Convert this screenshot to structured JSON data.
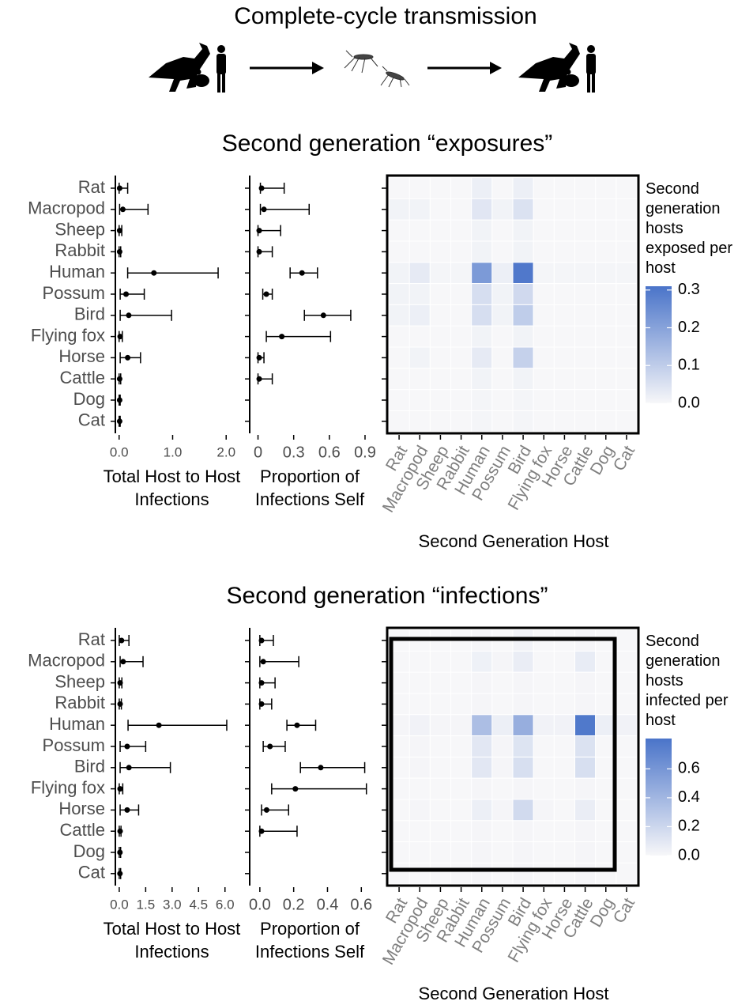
{
  "title": "Complete-cycle transmission",
  "chart_data": [
    {
      "type": "pointrange",
      "title": "Second generation “exposures”",
      "categories": [
        "Rat",
        "Macropod",
        "Sheep",
        "Rabbit",
        "Human",
        "Possum",
        "Bird",
        "Flying fox",
        "Horse",
        "Cattle",
        "Dog",
        "Cat"
      ],
      "values": [
        0.01,
        0.07,
        0.01,
        0.01,
        0.65,
        0.13,
        0.18,
        0.02,
        0.16,
        0.01,
        0.01,
        0.01
      ],
      "lower": [
        0,
        0.01,
        0,
        0,
        0.16,
        0.02,
        0.02,
        0,
        0.02,
        0,
        0,
        0
      ],
      "upper": [
        0.16,
        0.54,
        0.05,
        0.03,
        1.85,
        0.47,
        0.98,
        0.06,
        0.4,
        0.03,
        0.02,
        0.02
      ],
      "xlim": [
        -0.07,
        2.1
      ],
      "xticks": [
        {
          "value": 0,
          "label": "0.0"
        },
        {
          "value": 1,
          "label": "1.0"
        },
        {
          "value": 2,
          "label": "2.0"
        }
      ],
      "xlabel": "Total Host to Host Infections",
      "color": "#000000"
    },
    {
      "type": "pointrange",
      "values": [
        0.03,
        0.05,
        0.01,
        0.01,
        0.37,
        0.07,
        0.55,
        0.2,
        0.01,
        0.01,
        null,
        null
      ],
      "lower": [
        0.02,
        0.02,
        0,
        0,
        0.27,
        0.04,
        0.39,
        0.07,
        0,
        0,
        null,
        null
      ],
      "upper": [
        0.22,
        0.43,
        0.19,
        0.12,
        0.5,
        0.12,
        0.78,
        0.61,
        0.05,
        0.12,
        null,
        null
      ],
      "xlim": [
        -0.07,
        0.94
      ],
      "xticks": [
        0,
        0.3,
        0.6,
        0.9
      ],
      "xlabel": "Proportion of Infections Self",
      "color": "#000000"
    },
    {
      "type": "heatmap",
      "x": [
        "Rat",
        "Macropod",
        "Sheep",
        "Rabbit",
        "Human",
        "Possum",
        "Bird",
        "Flying fox",
        "Horse",
        "Cattle",
        "Dog",
        "Cat"
      ],
      "z": [
        [
          0,
          0,
          0,
          0,
          0.02,
          0,
          0.02,
          0,
          0,
          0,
          0,
          0
        ],
        [
          0.01,
          0.01,
          0,
          0,
          0.04,
          0.01,
          0.05,
          0,
          0,
          0,
          0,
          0
        ],
        [
          0,
          0,
          0,
          0,
          0.01,
          0,
          0.01,
          0,
          0,
          0,
          0,
          0
        ],
        [
          0,
          0,
          0,
          0,
          0.01,
          0,
          0.01,
          0,
          0,
          0,
          0,
          0
        ],
        [
          0.01,
          0.03,
          0.005,
          0.005,
          0.22,
          0.02,
          0.3,
          0.005,
          0.005,
          0.005,
          0.005,
          0.005
        ],
        [
          0.01,
          0.01,
          0,
          0,
          0.06,
          0.01,
          0.07,
          0,
          0,
          0,
          0,
          0
        ],
        [
          0.01,
          0.02,
          0,
          0,
          0.06,
          0.01,
          0.1,
          0,
          0,
          0,
          0,
          0
        ],
        [
          0,
          0,
          0,
          0,
          0.01,
          0,
          0.01,
          0,
          0,
          0,
          0,
          0
        ],
        [
          0,
          0.01,
          0,
          0,
          0.03,
          0,
          0.09,
          0,
          0,
          0,
          0,
          0
        ],
        [
          0,
          0,
          0,
          0,
          0.01,
          0,
          0.01,
          0,
          0,
          0,
          0,
          0
        ],
        [
          0,
          0,
          0,
          0,
          0.005,
          0,
          0.005,
          0,
          0,
          0,
          0,
          0
        ],
        [
          0,
          0,
          0,
          0,
          0.005,
          0,
          0.005,
          0,
          0,
          0,
          0,
          0
        ]
      ],
      "xlabel": "Second Generation Host",
      "legend_title": "Second generation hosts exposed per host",
      "zlim": [
        0,
        0.31
      ],
      "zticks": [
        {
          "value": 0,
          "label": "0.0"
        },
        0.1,
        0.2,
        0.3
      ],
      "colors": [
        "#f7f7f9",
        "#4a74c9"
      ]
    },
    {
      "type": "pointrange",
      "title": "Second generation “infections”",
      "categories": [
        "Rat",
        "Macropod",
        "Sheep",
        "Rabbit",
        "Human",
        "Possum",
        "Bird",
        "Flying fox",
        "Horse",
        "Cattle",
        "Dog",
        "Cat"
      ],
      "values": [
        0.13,
        0.22,
        0.05,
        0.05,
        2.25,
        0.45,
        0.55,
        0.05,
        0.45,
        0.05,
        0.04,
        0.04
      ],
      "lower": [
        0,
        0.05,
        0,
        0,
        0.5,
        0.05,
        0.05,
        0,
        0.05,
        0,
        0,
        0
      ],
      "upper": [
        0.55,
        1.35,
        0.15,
        0.12,
        6.1,
        1.5,
        2.9,
        0.2,
        1.1,
        0.1,
        0.08,
        0.08
      ],
      "xlim": [
        -0.22,
        6.37
      ],
      "xticks": [
        {
          "value": 0,
          "label": "0.0"
        },
        1.5,
        {
          "value": 3,
          "label": "3.0"
        },
        4.5,
        {
          "value": 6,
          "label": "6.0"
        }
      ],
      "xlabel": "Total Host to Host Infections",
      "color": "#000000"
    },
    {
      "type": "pointrange",
      "values": [
        0.01,
        0.02,
        0.01,
        0.01,
        0.22,
        0.06,
        0.36,
        0.21,
        0.04,
        0.01,
        null,
        null
      ],
      "lower": [
        0,
        0,
        0,
        0,
        0.16,
        0.02,
        0.24,
        0.07,
        0.01,
        0,
        null,
        null
      ],
      "upper": [
        0.08,
        0.23,
        0.09,
        0.07,
        0.33,
        0.15,
        0.62,
        0.63,
        0.17,
        0.22,
        null,
        null
      ],
      "xlim": [
        -0.06,
        0.65
      ],
      "xticks": [
        {
          "value": 0,
          "label": "0.0"
        },
        0.2,
        0.4,
        0.6
      ],
      "xlabel": "Proportion of Infections Self",
      "color": "#000000"
    },
    {
      "type": "heatmap",
      "x": [
        "Rat",
        "Macropod",
        "Sheep",
        "Rabbit",
        "Human",
        "Possum",
        "Bird",
        "Flying fox",
        "Horse",
        "Cattle",
        "Dog",
        "Cat"
      ],
      "z": [
        [
          0,
          0,
          0,
          0,
          0.01,
          0,
          0.03,
          0,
          0,
          0.01,
          0,
          0
        ],
        [
          0,
          0,
          0,
          0,
          0.04,
          0.01,
          0.06,
          0,
          0,
          0.07,
          0,
          0
        ],
        [
          0,
          0,
          0,
          0,
          0.01,
          0,
          0.01,
          0,
          0,
          0.01,
          0,
          0
        ],
        [
          0,
          0,
          0,
          0,
          0.01,
          0,
          0.01,
          0,
          0,
          0.01,
          0,
          0
        ],
        [
          0.01,
          0.03,
          0.01,
          0.01,
          0.35,
          0.05,
          0.45,
          0.03,
          0.03,
          0.78,
          0.05,
          0.03
        ],
        [
          0,
          0.01,
          0,
          0,
          0.1,
          0.01,
          0.12,
          0,
          0,
          0.13,
          0,
          0
        ],
        [
          0,
          0.01,
          0,
          0,
          0.1,
          0.01,
          0.15,
          0,
          0,
          0.15,
          0,
          0
        ],
        [
          0,
          0,
          0,
          0,
          0.01,
          0,
          0.01,
          0,
          0,
          0.01,
          0,
          0
        ],
        [
          0,
          0.01,
          0,
          0,
          0.05,
          0.01,
          0.18,
          0.01,
          0,
          0.06,
          0,
          0
        ],
        [
          0,
          0,
          0,
          0,
          0.01,
          0,
          0.01,
          0,
          0,
          0.01,
          0,
          0
        ],
        [
          0,
          0,
          0,
          0,
          0.01,
          0,
          0.01,
          0,
          0,
          0.01,
          0,
          0
        ],
        [
          0,
          0,
          0,
          0,
          0.01,
          0,
          0.01,
          0,
          0,
          0.01,
          0,
          0
        ]
      ],
      "xlabel": "Second Generation Host",
      "legend_title": "Second generation hosts infected per host",
      "zlim": [
        0,
        0.81
      ],
      "zticks": [
        {
          "value": 0,
          "label": "0.0"
        },
        0.2,
        0.4,
        0.6
      ],
      "colors": [
        "#f7f7f9",
        "#4a74c9"
      ]
    }
  ]
}
